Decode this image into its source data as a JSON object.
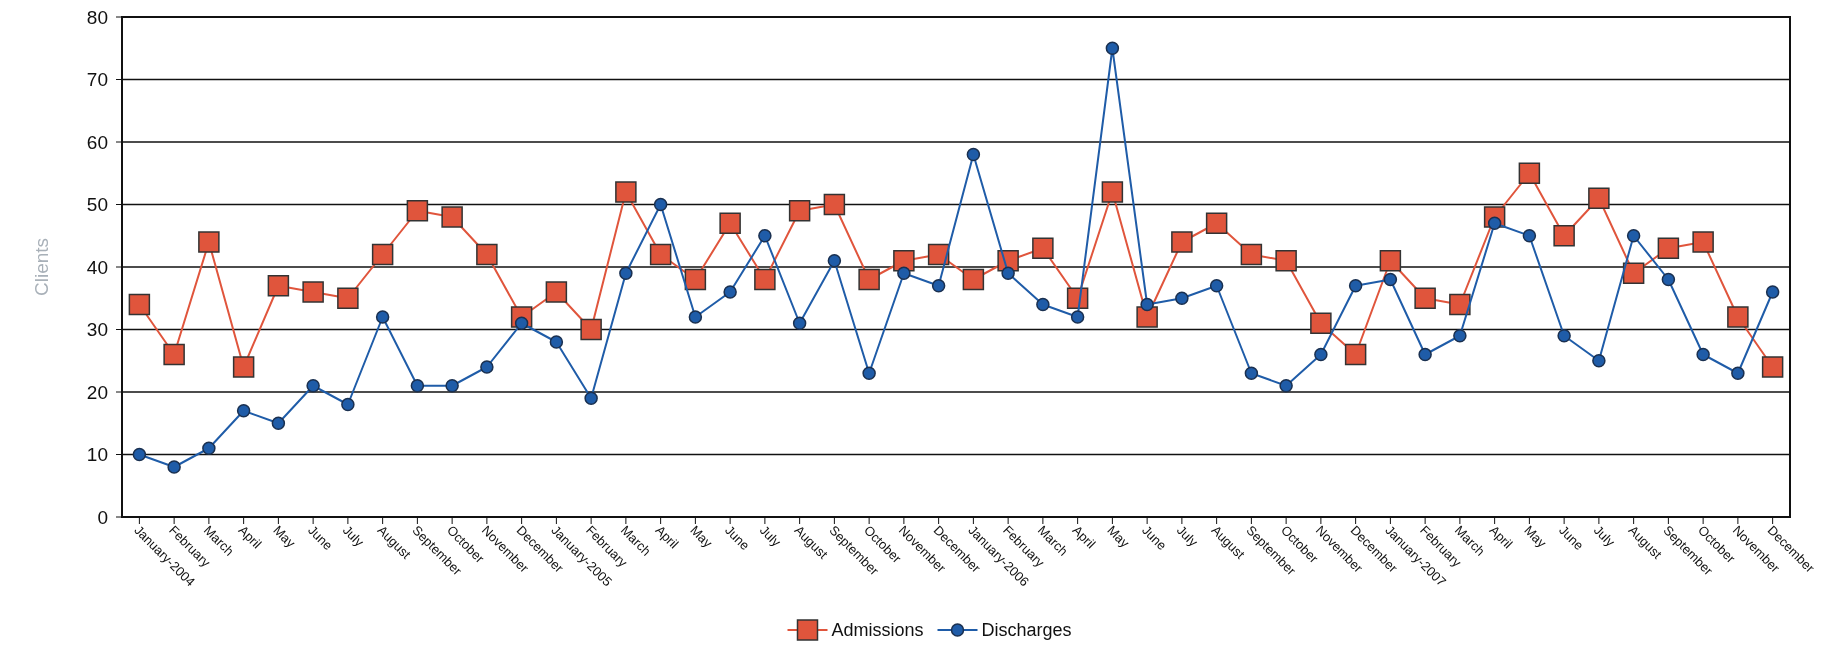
{
  "chart_data": {
    "type": "line",
    "ylabel": "Clients",
    "categories": [
      "January-2004",
      "February",
      "March",
      "April",
      "May",
      "June",
      "July",
      "August",
      "September",
      "October",
      "November",
      "December",
      "January-2005",
      "February",
      "March",
      "April",
      "May",
      "June",
      "July",
      "August",
      "September",
      "October",
      "November",
      "December",
      "January-2006",
      "February",
      "March",
      "April",
      "May",
      "June",
      "July",
      "August",
      "September",
      "October",
      "November",
      "December",
      "January-2007",
      "February",
      "March",
      "April",
      "May",
      "June",
      "July",
      "August",
      "September",
      "October",
      "November",
      "December"
    ],
    "series": [
      {
        "name": "Admissions",
        "color": "#e0553c",
        "marker": "square",
        "values": [
          34,
          26,
          44,
          24,
          37,
          36,
          35,
          42,
          49,
          48,
          42,
          32,
          36,
          30,
          52,
          42,
          38,
          47,
          38,
          49,
          50,
          38,
          41,
          42,
          38,
          41,
          43,
          35,
          52,
          32,
          44,
          47,
          42,
          41,
          31,
          26,
          41,
          35,
          34,
          48,
          55,
          45,
          51,
          39,
          43,
          44,
          32,
          24
        ]
      },
      {
        "name": "Discharges",
        "color": "#1f5ca8",
        "marker": "circle",
        "values": [
          10,
          8,
          11,
          17,
          15,
          21,
          18,
          32,
          21,
          21,
          24,
          31,
          28,
          19,
          39,
          50,
          32,
          36,
          45,
          31,
          41,
          23,
          39,
          37,
          58,
          39,
          34,
          32,
          75,
          34,
          35,
          37,
          23,
          21,
          26,
          37,
          38,
          26,
          29,
          47,
          45,
          29,
          25,
          45,
          38,
          26,
          23,
          36
        ]
      }
    ],
    "ylim": [
      0,
      80
    ],
    "yticks": [
      0,
      10,
      20,
      30,
      40,
      50,
      60,
      70,
      80
    ],
    "grid": "y",
    "legend": "bottom"
  }
}
